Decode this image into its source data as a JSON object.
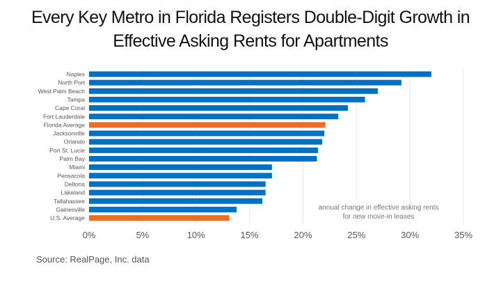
{
  "chart_data": {
    "type": "bar",
    "orientation": "horizontal",
    "title": "Every Key Metro in Florida Registers Double-Digit Growth in Effective Asking Rents for Apartments",
    "categories": [
      "Naples",
      "North Port",
      "West Palm Beach",
      "Tampa",
      "Cape Coral",
      "Fort Lauderdale",
      "Florida Average",
      "Jacksonville",
      "Orlando",
      "Port St. Lucie",
      "Palm Bay",
      "Miami",
      "Pensacola",
      "Deltona",
      "Lakeland",
      "Tallahassee",
      "Gainesville",
      "U.S. Average"
    ],
    "values": [
      32.0,
      29.2,
      27.0,
      25.8,
      24.2,
      23.3,
      22.1,
      22.0,
      21.8,
      21.4,
      21.3,
      17.1,
      17.1,
      16.5,
      16.5,
      16.2,
      13.8,
      13.1
    ],
    "highlight": [
      "Florida Average",
      "U.S. Average"
    ],
    "xlim": [
      0,
      35
    ],
    "xticks": [
      "0%",
      "5%",
      "10%",
      "15%",
      "20%",
      "25%",
      "30%",
      "35%"
    ],
    "annotation": [
      "annual change in effective asking rents",
      "for new move-in leases"
    ],
    "grid": "vertical",
    "colors": {
      "bar": "#0070C0",
      "highlight": "#F26B21",
      "grid": "#E6E6E6"
    }
  },
  "source": "Source: RealPage, Inc. data"
}
